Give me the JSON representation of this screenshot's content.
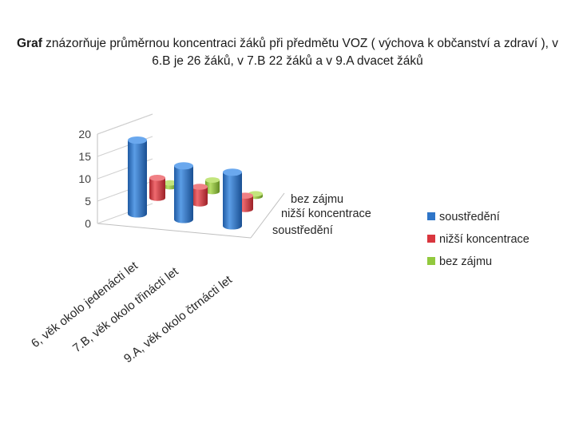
{
  "slide": {
    "title_bold": "Graf",
    "title_rest": " znázorňuje průměrnou koncentraci žáků při předmětu VOZ ( výchova k občanství a zdraví ), v 6.B je 26 žáků, v 7.B 22 žáků a v 9.A dvacet žáků"
  },
  "chart_data": {
    "type": "bar",
    "subtype": "3d-cylinder",
    "title": "",
    "categories": [
      "6.B, věk okolo jedenácti let",
      "7.B, věk okolo třinácti let",
      "9.A, věk okolo čtrnácti let"
    ],
    "category_labels_shown": [
      "6, věk okolo jedenácti let",
      "7.B, věk okolo třinácti let",
      "9.A, věk okolo čtrnácti let"
    ],
    "series": [
      {
        "name": "soustředění",
        "color": "#2E75C8",
        "values": [
          16.5,
          12,
          12
        ]
      },
      {
        "name": "nižší koncentrace",
        "color": "#D9363E",
        "values": [
          6,
          5,
          4
        ]
      },
      {
        "name": "bez zájmu",
        "color": "#92C93E",
        "values": [
          1.5,
          4.5,
          1
        ]
      }
    ],
    "depth_labels": [
      "bez zájmu",
      "nižší koncentrace",
      "soustředění"
    ],
    "y_ticks": [
      "0",
      "5",
      "10",
      "15",
      "20"
    ],
    "ylim": [
      0,
      20
    ],
    "grid": true,
    "legend": "right"
  }
}
